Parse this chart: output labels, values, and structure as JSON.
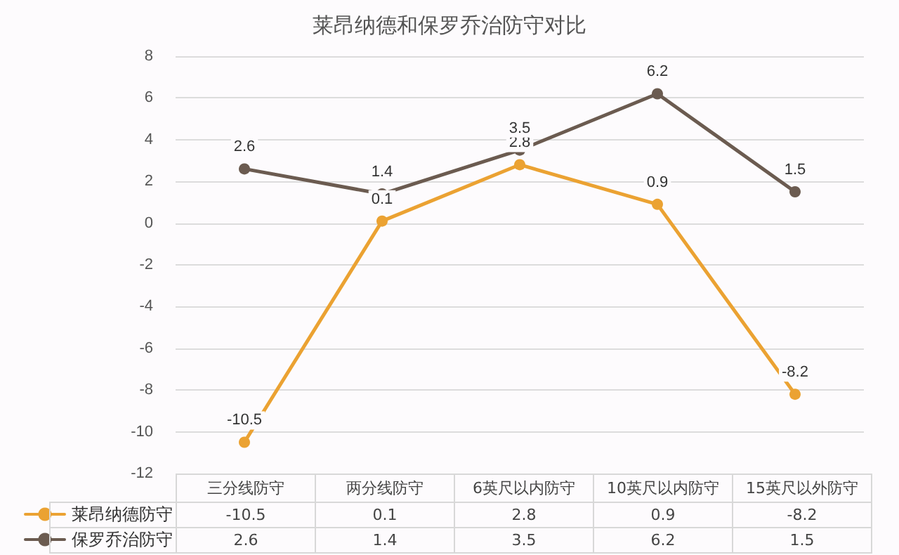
{
  "chart_data": {
    "type": "line",
    "title": "莱昂纳德和保罗乔治防守对比",
    "categories": [
      "三分线防守",
      "两分线防守",
      "6英尺以内防守",
      "10英尺以内防守",
      "15英尺以外防守"
    ],
    "series": [
      {
        "name": "莱昂纳德防守",
        "color": "#eba232",
        "values": [
          -10.5,
          0.1,
          2.8,
          0.9,
          -8.2
        ]
      },
      {
        "name": "保罗乔治防守",
        "color": "#6b5b50",
        "values": [
          2.6,
          1.4,
          3.5,
          6.2,
          1.5
        ]
      }
    ],
    "annotations": [
      {
        "text": "-10.5",
        "x": "三分线防守",
        "y": -10.5
      },
      {
        "text": "0.1",
        "x": "两分线防守",
        "y": 0.1
      },
      {
        "text": "2.8",
        "x": "6英尺以内防守",
        "y": 2.8
      },
      {
        "text": "0.9",
        "x": "10英尺以内防守",
        "y": 0.9
      },
      {
        "text": "-8.2",
        "x": "15英尺以外防守",
        "y": -8.2
      },
      {
        "text": "2.6",
        "x": "三分线防守",
        "y": 2.6
      },
      {
        "text": "1.4",
        "x": "两分线防守",
        "y": 1.4
      },
      {
        "text": "3.5",
        "x": "6英尺以内防守",
        "y": 3.5
      },
      {
        "text": "6.2",
        "x": "10英尺以内防守",
        "y": 6.2
      },
      {
        "text": "1.5",
        "x": "15英尺以外防守",
        "y": 1.5
      }
    ],
    "ylim": [
      -12,
      8
    ],
    "yticks": [
      -12,
      -10,
      -8,
      -6,
      -4,
      -2,
      0,
      2,
      4,
      6,
      8
    ],
    "grid": "y",
    "legend": "bottom left",
    "marker": "circle",
    "line_style": "solid",
    "data_labels": true
  }
}
